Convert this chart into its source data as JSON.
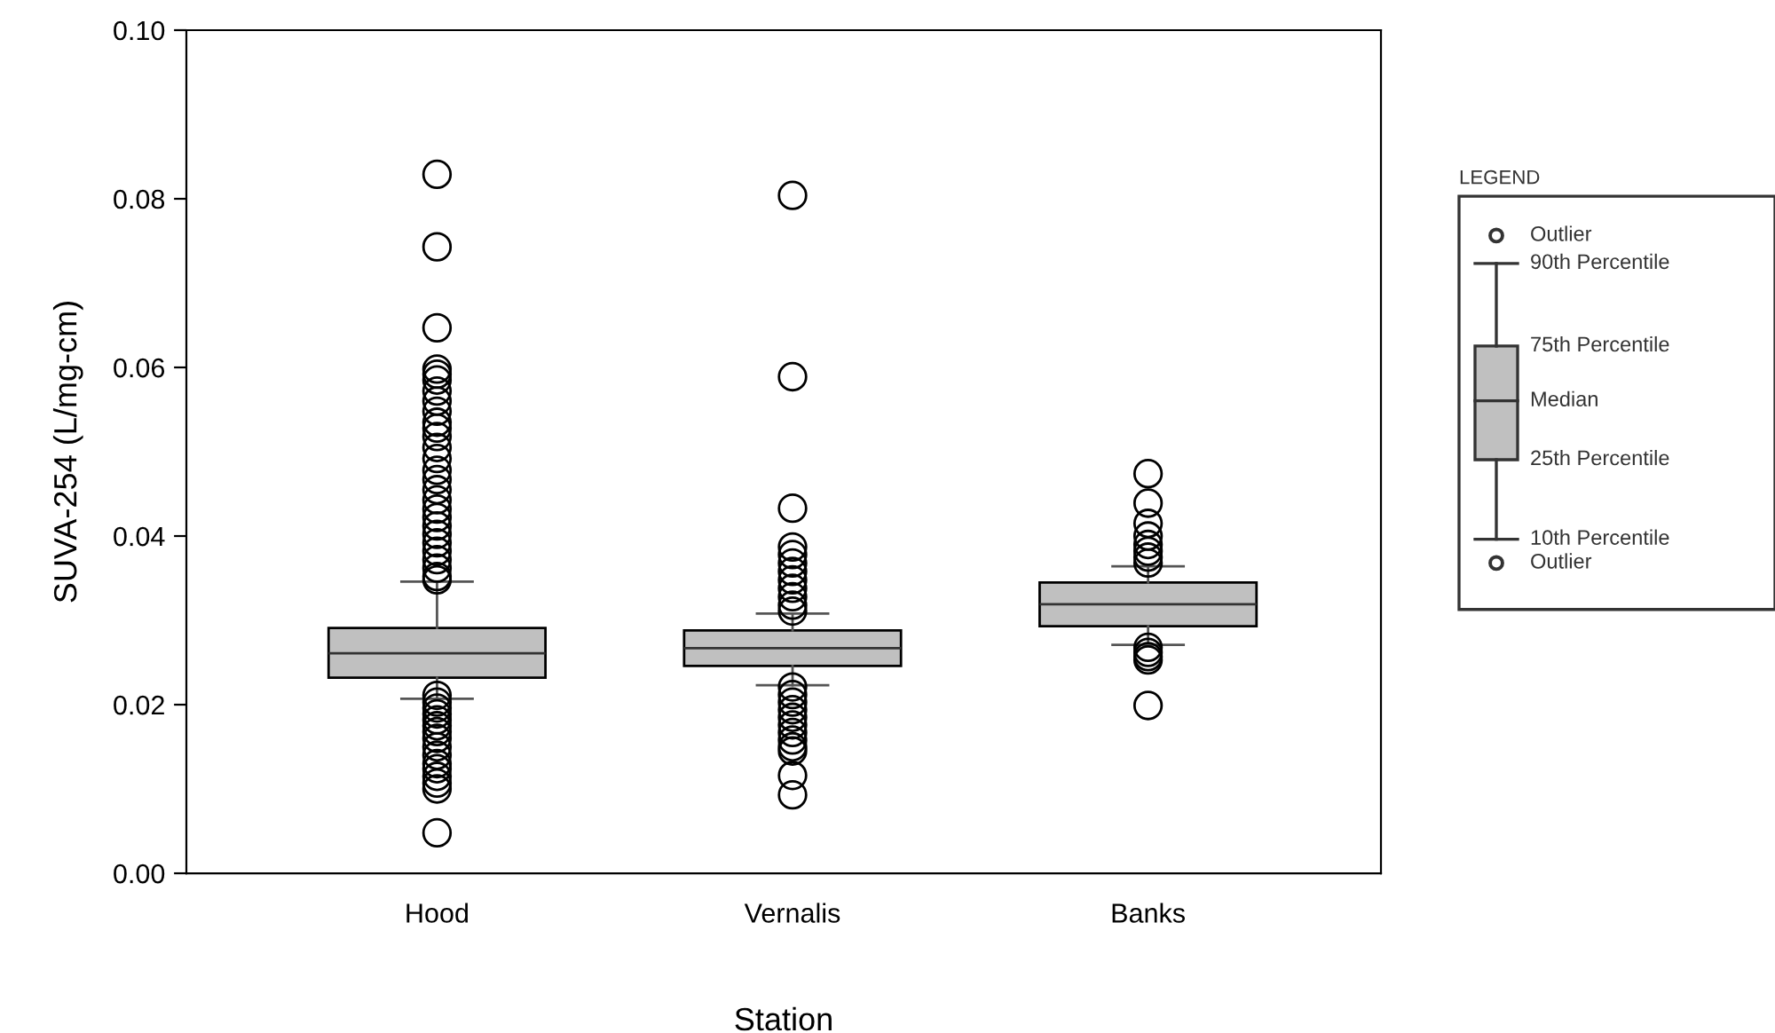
{
  "chart_data": {
    "type": "box",
    "xlabel": "Station",
    "ylabel": "SUVA-254 (L/mg-cm)",
    "categories": [
      "Hood",
      "Vernalis",
      "Banks"
    ],
    "boxes": [
      {
        "low": 0.0207,
        "q1": 0.0232,
        "median": 0.0261,
        "q3": 0.0291,
        "high": 0.0346,
        "outliers": [
          0.0829,
          0.0743,
          0.0647,
          0.0598,
          0.0592,
          0.0585,
          0.0572,
          0.056,
          0.0548,
          0.0535,
          0.0528,
          0.0518,
          0.0505,
          0.0492,
          0.0478,
          0.0467,
          0.0455,
          0.0443,
          0.0432,
          0.0422,
          0.0412,
          0.0402,
          0.0392,
          0.0382,
          0.0372,
          0.0362,
          0.0352,
          0.0348,
          0.0211,
          0.0203,
          0.0196,
          0.0189,
          0.0182,
          0.0175,
          0.0168,
          0.016,
          0.015,
          0.014,
          0.013,
          0.0124,
          0.0115,
          0.0107,
          0.01,
          0.0048
        ]
      },
      {
        "low": 0.0223,
        "q1": 0.0246,
        "median": 0.0267,
        "q3": 0.0288,
        "high": 0.0308,
        "outliers": [
          0.0804,
          0.0589,
          0.0433,
          0.0387,
          0.0378,
          0.0368,
          0.0358,
          0.0348,
          0.0338,
          0.0328,
          0.0318,
          0.0311,
          0.0221,
          0.0212,
          0.0203,
          0.0194,
          0.0185,
          0.0176,
          0.0167,
          0.0158,
          0.015,
          0.0145,
          0.0116,
          0.0093
        ]
      },
      {
        "low": 0.0271,
        "q1": 0.0293,
        "median": 0.0319,
        "q3": 0.0345,
        "high": 0.0364,
        "outliers": [
          0.0474,
          0.0439,
          0.0415,
          0.04,
          0.039,
          0.0382,
          0.0375,
          0.0368,
          0.0268,
          0.0262,
          0.0257,
          0.0253,
          0.0199
        ]
      }
    ],
    "color": "#c0c0c0",
    "ylim": [
      0,
      0.1
    ],
    "yticks": [
      {
        "value": 0,
        "label": "0.00"
      },
      {
        "value": 0.02,
        "label": "0.02"
      },
      {
        "value": 0.04,
        "label": "0.04"
      },
      {
        "value": 0.06,
        "label": "0.06"
      },
      {
        "value": 0.08,
        "label": "0.08"
      },
      {
        "value": 0.1,
        "label": "0.10"
      }
    ],
    "grid": false,
    "legend": false,
    "annotations": [
      "LEGEND",
      "Outlier",
      "90th Percentile",
      "75th Percentile",
      "Median",
      "25th Percentile",
      "10th Percentile",
      "Outlier"
    ]
  }
}
